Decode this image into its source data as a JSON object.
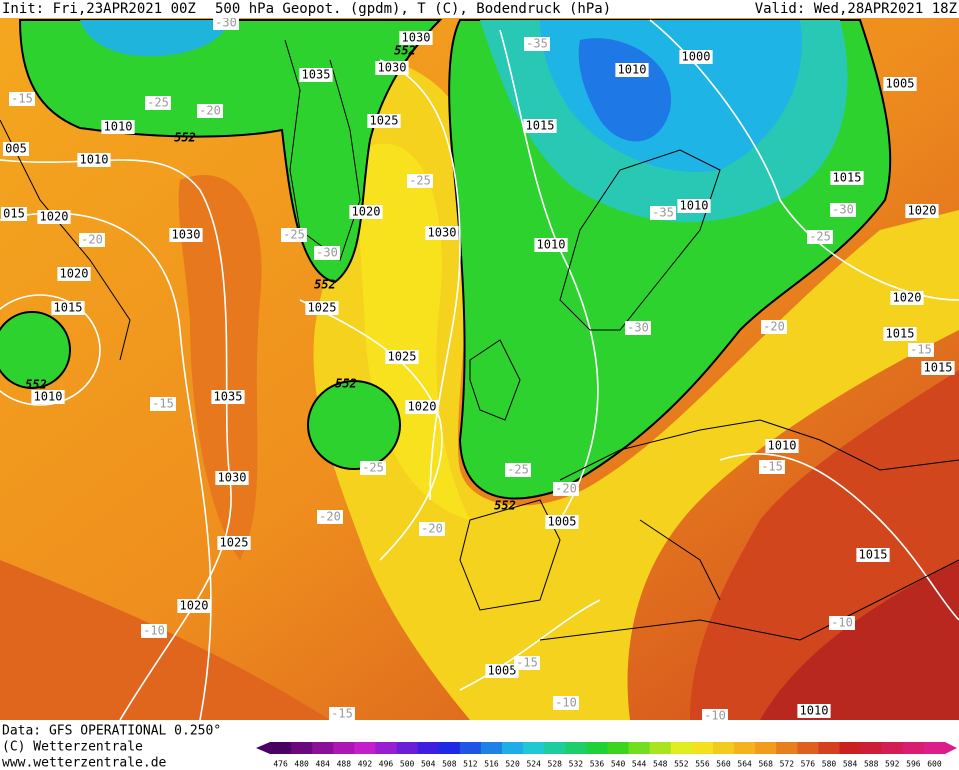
{
  "header": {
    "init": "Init: Fri,23APR2021 00Z",
    "title": "500 hPa Geopot. (gpdm), T (C), Bodendruck (hPa)",
    "valid": "Valid: Wed,28APR2021 18Z"
  },
  "footer": {
    "source": "Data: GFS OPERATIONAL 0.250°",
    "copyright": "(C) Wetterzentrale",
    "url": "www.wetterzentrale.de"
  },
  "colorbar": {
    "labels": [
      "476",
      "480",
      "484",
      "488",
      "492",
      "496",
      "500",
      "504",
      "508",
      "512",
      "516",
      "520",
      "524",
      "528",
      "532",
      "536",
      "540",
      "544",
      "548",
      "552",
      "556",
      "560",
      "564",
      "568",
      "572",
      "576",
      "580",
      "584",
      "588",
      "592",
      "596",
      "600"
    ]
  },
  "map": {
    "pressure_labels": [
      "1030",
      "1035",
      "1030",
      "1010",
      "1000",
      "1005",
      "1010",
      "005",
      "1010",
      "1025",
      "1015",
      "1015",
      "1010",
      "1020",
      "1020",
      "015",
      "1020",
      "1030",
      "1030",
      "1010",
      "1020",
      "1015",
      "1025",
      "1020",
      "1015",
      "1015",
      "1025",
      "1010",
      "1035",
      "1020",
      "1010",
      "1030",
      "1005",
      "1025",
      "1015",
      "1020",
      "1005",
      "1010"
    ],
    "temperature_labels": [
      "-30",
      "-35",
      "-15",
      "-25",
      "-20",
      "-25",
      "-35",
      "-30",
      "-25",
      "-20",
      "-30",
      "-25",
      "-20",
      "-30",
      "-15",
      "-15",
      "-15",
      "-25",
      "-25",
      "-20",
      "-20",
      "-20",
      "-10",
      "-10",
      "-15",
      "-10",
      "-15",
      "-10"
    ],
    "contour_labels": [
      "552",
      "552",
      "552",
      "552",
      "552",
      "552"
    ]
  }
}
